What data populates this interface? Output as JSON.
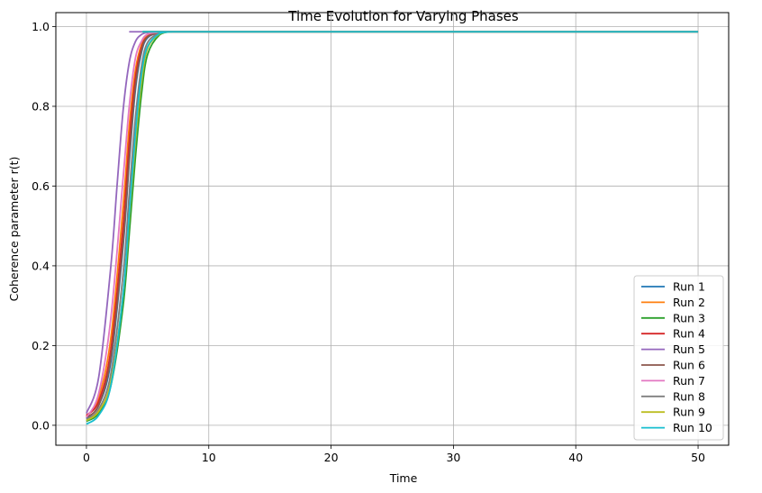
{
  "chart_data": {
    "type": "line",
    "title": "Time Evolution for Varying Phases",
    "xlabel": "Time",
    "ylabel": "Coherence parameter r(t)",
    "xlim": [
      -2.5,
      52.5
    ],
    "ylim": [
      -0.05,
      1.035
    ],
    "xticks": [
      0,
      10,
      20,
      30,
      40,
      50
    ],
    "yticks": [
      0.0,
      0.2,
      0.4,
      0.6,
      0.8,
      1.0
    ],
    "xtick_labels": [
      "0",
      "10",
      "20",
      "30",
      "40",
      "50"
    ],
    "ytick_labels": [
      "0.0",
      "0.2",
      "0.4",
      "0.6",
      "0.8",
      "1.0"
    ],
    "grid": true,
    "legend_position": "lower-right",
    "x_range": [
      0,
      50
    ],
    "plateau": 0.987,
    "series": [
      {
        "name": "Run 1",
        "color": "#1f77b4",
        "x": [
          0,
          1,
          2,
          3,
          3.5,
          4,
          4.5,
          5,
          6,
          7,
          8,
          50
        ],
        "values": [
          0.018,
          0.05,
          0.16,
          0.45,
          0.66,
          0.84,
          0.935,
          0.972,
          0.985,
          0.987,
          0.987,
          0.987
        ]
      },
      {
        "name": "Run 2",
        "color": "#ff7f0e",
        "x": [
          0,
          1,
          2,
          3,
          3.5,
          4,
          4.5,
          5,
          6,
          7,
          8,
          50
        ],
        "values": [
          0.022,
          0.07,
          0.22,
          0.55,
          0.75,
          0.89,
          0.955,
          0.978,
          0.986,
          0.987,
          0.987,
          0.987
        ]
      },
      {
        "name": "Run 3",
        "color": "#2ca02c",
        "x": [
          0,
          1,
          2,
          3,
          3.5,
          4,
          4.5,
          5,
          6,
          7,
          8,
          50
        ],
        "values": [
          0.01,
          0.03,
          0.1,
          0.3,
          0.48,
          0.67,
          0.83,
          0.93,
          0.98,
          0.987,
          0.987,
          0.987
        ]
      },
      {
        "name": "Run 4",
        "color": "#d62728",
        "x": [
          0,
          1,
          2,
          3,
          3.5,
          4,
          4.5,
          5,
          6,
          7,
          8,
          50
        ],
        "values": [
          0.025,
          0.06,
          0.19,
          0.5,
          0.71,
          0.87,
          0.947,
          0.975,
          0.986,
          0.987,
          0.987,
          0.987
        ]
      },
      {
        "name": "Run 5",
        "color": "#9467bd",
        "x": [
          0,
          1,
          2,
          2.5,
          3,
          3.5,
          4,
          4.5,
          5,
          6,
          7,
          50
        ],
        "values": [
          0.03,
          0.12,
          0.4,
          0.6,
          0.79,
          0.91,
          0.962,
          0.98,
          0.985,
          0.987,
          0.987,
          0.987
        ]
      },
      {
        "name": "Run 6",
        "color": "#8c564b",
        "x": [
          0,
          1,
          2,
          3,
          3.5,
          4,
          4.5,
          5,
          6,
          7,
          8,
          50
        ],
        "values": [
          0.02,
          0.05,
          0.17,
          0.46,
          0.67,
          0.85,
          0.94,
          0.974,
          0.985,
          0.987,
          0.987,
          0.987
        ]
      },
      {
        "name": "Run 7",
        "color": "#e377c2",
        "x": [
          0,
          1,
          2,
          3,
          3.5,
          4,
          4.5,
          5,
          6,
          7,
          8,
          50
        ],
        "values": [
          0.02,
          0.08,
          0.27,
          0.62,
          0.8,
          0.92,
          0.963,
          0.981,
          0.986,
          0.987,
          0.987,
          0.987
        ]
      },
      {
        "name": "Run 8",
        "color": "#7f7f7f",
        "x": [
          0,
          1,
          2,
          3,
          3.5,
          4,
          4.5,
          5,
          6,
          7,
          8,
          50
        ],
        "values": [
          0.015,
          0.04,
          0.13,
          0.38,
          0.58,
          0.77,
          0.9,
          0.96,
          0.984,
          0.987,
          0.987,
          0.987
        ]
      },
      {
        "name": "Run 9",
        "color": "#bcbd22",
        "x": [
          0,
          1,
          2,
          3,
          3.5,
          4,
          4.5,
          5,
          6,
          7,
          8,
          50
        ],
        "values": [
          0.012,
          0.035,
          0.11,
          0.33,
          0.52,
          0.71,
          0.86,
          0.945,
          0.982,
          0.987,
          0.987,
          0.987
        ]
      },
      {
        "name": "Run 10",
        "color": "#17becf",
        "x": [
          0,
          1,
          2,
          3,
          3.5,
          4,
          4.5,
          5,
          6,
          7,
          8,
          50
        ],
        "values": [
          0.003,
          0.025,
          0.1,
          0.33,
          0.53,
          0.73,
          0.88,
          0.95,
          0.983,
          0.987,
          0.987,
          0.987
        ]
      }
    ]
  }
}
